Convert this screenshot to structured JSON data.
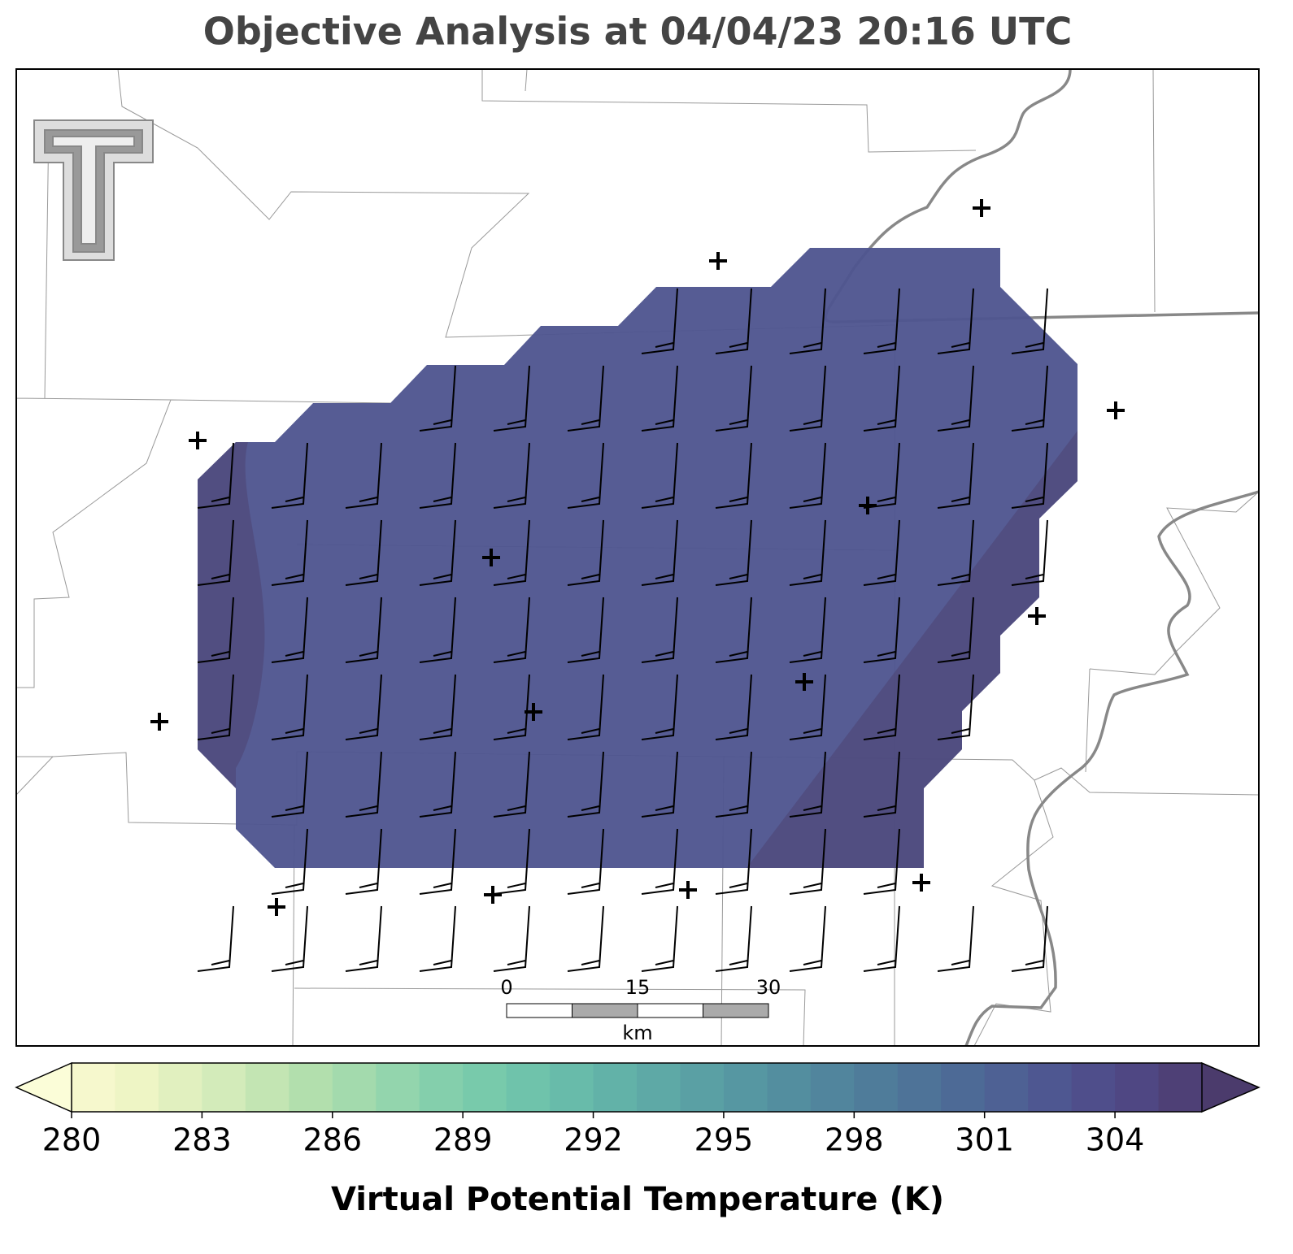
{
  "chart_data": {
    "type": "map",
    "title": "Objective Analysis at 04/04/23 20:16 UTC",
    "colorbar": {
      "label": "Virtual Potential Temperature (K)",
      "lim": [
        280,
        306
      ],
      "ticks": [
        280,
        283,
        286,
        289,
        292,
        295,
        298,
        301,
        304
      ],
      "colors": [
        "#f6f8cd",
        "#eef5c5",
        "#e1f0bf",
        "#d3ebba",
        "#c3e5b3",
        "#b2dfad",
        "#a3daad",
        "#93d5ad",
        "#84cfac",
        "#78caab",
        "#6fc3ab",
        "#68bbaa",
        "#62b2a8",
        "#5ea9a6",
        "#5aa0a4",
        "#5697a2",
        "#538e9f",
        "#51859d",
        "#4f7c9a",
        "#4e7398",
        "#4d6a96",
        "#4e6194",
        "#4e5791",
        "#4f4e8b",
        "#4f4783",
        "#4e4076"
      ],
      "extend_colors": [
        "#fbfdd8",
        "#4b3b6c"
      ]
    },
    "scale_bar": {
      "ticks": [
        0,
        15,
        30
      ],
      "unit": "km"
    }
  }
}
